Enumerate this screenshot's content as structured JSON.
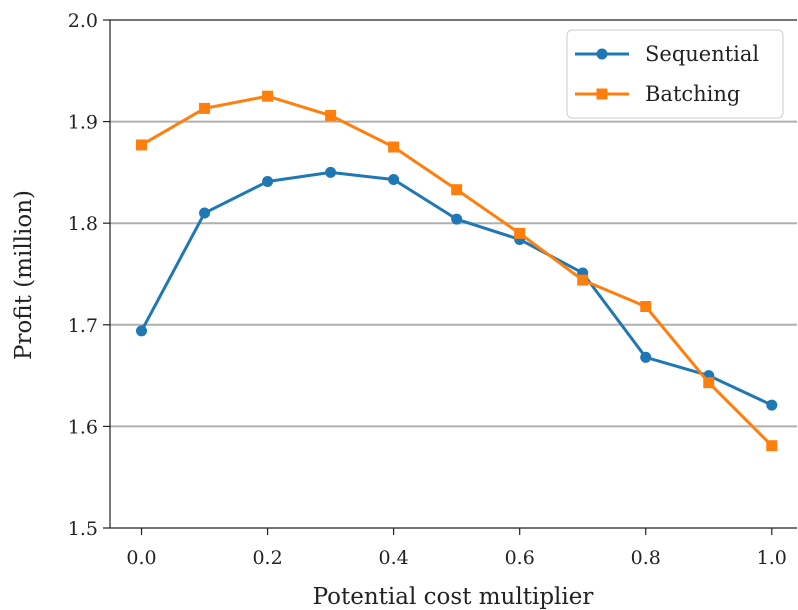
{
  "chart_data": {
    "type": "line",
    "title": "",
    "xlabel": "Potential cost multiplier",
    "ylabel": "Profit (million)",
    "x": [
      0.0,
      0.1,
      0.2,
      0.3,
      0.4,
      0.5,
      0.6,
      0.7,
      0.8,
      0.9,
      1.0
    ],
    "xlim": [
      -0.05,
      1.04
    ],
    "ylim": [
      1.5,
      2.0
    ],
    "xticks": [
      "0.0",
      "0.2",
      "0.4",
      "0.6",
      "0.8",
      "1.0"
    ],
    "yticks": [
      "1.5",
      "1.6",
      "1.7",
      "1.8",
      "1.9",
      "2.0"
    ],
    "grid": "horizontal",
    "legend_position": "top-right",
    "series": [
      {
        "name": "Sequential",
        "color": "#1f77b4",
        "marker": "circle",
        "values": [
          1.694,
          1.81,
          1.841,
          1.85,
          1.843,
          1.804,
          1.784,
          1.751,
          1.668,
          1.65,
          1.621
        ]
      },
      {
        "name": "Batching",
        "color": "#ff7f0e",
        "marker": "square",
        "values": [
          1.877,
          1.913,
          1.925,
          1.906,
          1.875,
          1.833,
          1.79,
          1.744,
          1.718,
          1.643,
          1.581
        ]
      }
    ]
  }
}
